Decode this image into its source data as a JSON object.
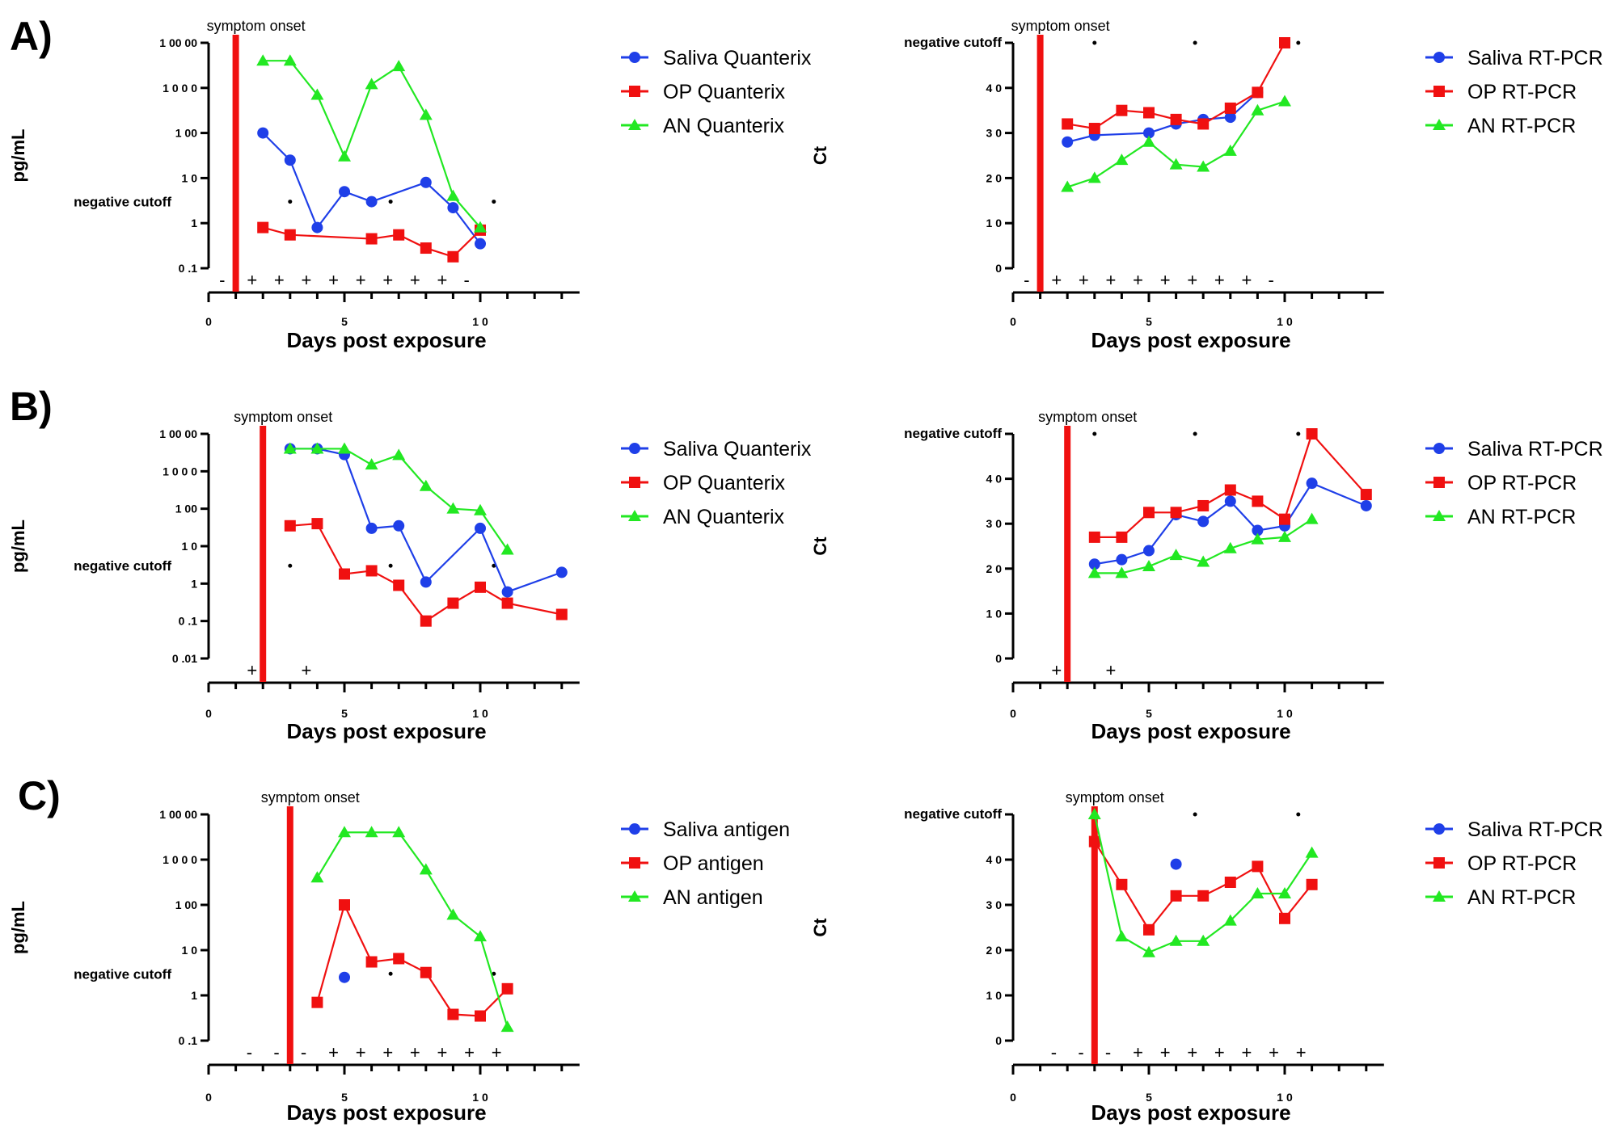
{
  "figure": {
    "xlabel": "Days post exposure",
    "symptom_label": "symptom onset",
    "cutoff_label": "negative cutoff",
    "xtick_labels": [
      "0",
      "5",
      "1 0"
    ],
    "colors": {
      "saliva": "#1f3fe8",
      "op": "#f01010",
      "an": "#22e822",
      "onset": "#f01010"
    }
  },
  "chart_data": [
    {
      "panel": "A)",
      "type": "line",
      "scale": "log",
      "ylabel": "pg/mL",
      "xlim": [
        0,
        13
      ],
      "ylim": [
        0.1,
        10000
      ],
      "yticks": [
        0.1,
        1,
        10,
        100,
        1000,
        10000
      ],
      "ytick_labels": [
        "0 .1",
        "1",
        "1 0",
        "1 00",
        "1 0 0 0",
        "1 00 00"
      ],
      "onset": 1,
      "cutoff_value": 3,
      "cutoff_dots": [
        3,
        6.7,
        10.5
      ],
      "signs": [
        {
          "x": 0.5,
          "s": "-"
        },
        {
          "x": 1.6,
          "s": "+"
        },
        {
          "x": 2.6,
          "s": "+"
        },
        {
          "x": 3.6,
          "s": "+"
        },
        {
          "x": 4.6,
          "s": "+"
        },
        {
          "x": 5.6,
          "s": "+"
        },
        {
          "x": 6.6,
          "s": "+"
        },
        {
          "x": 7.6,
          "s": "+"
        },
        {
          "x": 8.6,
          "s": "+"
        },
        {
          "x": 9.5,
          "s": "-"
        }
      ],
      "series": [
        {
          "name": "Saliva Quanterix",
          "marker": "circle",
          "key": "saliva",
          "x": [
            2,
            3,
            4,
            5,
            6,
            8,
            9,
            10
          ],
          "y": [
            100,
            25,
            0.8,
            5,
            3,
            8,
            2.2,
            0.35
          ]
        },
        {
          "name": "OP Quanterix",
          "marker": "square",
          "key": "op",
          "x": [
            2,
            3,
            6,
            7,
            8,
            9,
            10
          ],
          "y": [
            0.8,
            0.55,
            0.45,
            0.55,
            0.28,
            0.18,
            0.7
          ]
        },
        {
          "name": "AN Quanterix",
          "marker": "triangle",
          "key": "an",
          "x": [
            2,
            3,
            4,
            5,
            6,
            7,
            8,
            9,
            10
          ],
          "y": [
            4000,
            4000,
            700,
            30,
            1200,
            3000,
            250,
            4,
            0.8
          ]
        }
      ]
    },
    {
      "panel": "",
      "type": "line",
      "scale": "linear",
      "ylabel": "Ct",
      "xlim": [
        0,
        13
      ],
      "ylim": [
        0,
        50
      ],
      "yticks": [
        0,
        10,
        20,
        30,
        40,
        50
      ],
      "ytick_labels": [
        "0",
        "1 0",
        "2 0",
        "3 0",
        "4 0",
        "negative cutoff"
      ],
      "onset": 1,
      "cutoff_value": 50,
      "cutoff_dots": [
        3,
        6.7,
        10.5
      ],
      "signs": [
        {
          "x": 0.5,
          "s": "-"
        },
        {
          "x": 1.6,
          "s": "+"
        },
        {
          "x": 2.6,
          "s": "+"
        },
        {
          "x": 3.6,
          "s": "+"
        },
        {
          "x": 4.6,
          "s": "+"
        },
        {
          "x": 5.6,
          "s": "+"
        },
        {
          "x": 6.6,
          "s": "+"
        },
        {
          "x": 7.6,
          "s": "+"
        },
        {
          "x": 8.6,
          "s": "+"
        },
        {
          "x": 9.5,
          "s": "-"
        }
      ],
      "series": [
        {
          "name": "Saliva RT-PCR",
          "marker": "circle",
          "key": "saliva",
          "x": [
            2,
            3,
            5,
            6,
            7,
            8,
            9
          ],
          "y": [
            28,
            29.5,
            30,
            32,
            33,
            33.5,
            39
          ]
        },
        {
          "name": "OP RT-PCR",
          "marker": "square",
          "key": "op",
          "x": [
            2,
            3,
            4,
            5,
            6,
            7,
            8,
            9,
            10
          ],
          "y": [
            32,
            31,
            35,
            34.5,
            33,
            32,
            35.5,
            39,
            50
          ]
        },
        {
          "name": "AN RT-PCR",
          "marker": "triangle",
          "key": "an",
          "x": [
            2,
            3,
            4,
            5,
            6,
            7,
            8,
            9,
            10
          ],
          "y": [
            18,
            20,
            24,
            28,
            23,
            22.5,
            26,
            35,
            37
          ]
        }
      ]
    },
    {
      "panel": "B)",
      "type": "line",
      "scale": "log",
      "ylabel": "pg/mL",
      "xlim": [
        0,
        13
      ],
      "ylim": [
        0.01,
        10000
      ],
      "yticks": [
        0.01,
        0.1,
        1,
        10,
        100,
        1000,
        10000
      ],
      "ytick_labels": [
        "0 .01",
        "0 .1",
        "1",
        "1 0",
        "1 00",
        "1 0 0 0",
        "1 00 00"
      ],
      "onset": 2,
      "cutoff_value": 3,
      "cutoff_dots": [
        3,
        6.7,
        10.5
      ],
      "signs": [
        {
          "x": 1.6,
          "s": "+"
        },
        {
          "x": 3.6,
          "s": "+"
        }
      ],
      "series": [
        {
          "name": "Saliva Quanterix",
          "marker": "circle",
          "key": "saliva",
          "x": [
            3,
            4,
            5,
            6,
            7,
            8,
            10,
            11,
            13
          ],
          "y": [
            4000,
            4000,
            2800,
            30,
            35,
            1.1,
            30,
            0.6,
            2
          ]
        },
        {
          "name": "OP Quanterix",
          "marker": "square",
          "key": "op",
          "x": [
            3,
            4,
            5,
            6,
            7,
            8,
            9,
            10,
            11,
            13
          ],
          "y": [
            35,
            40,
            1.8,
            2.2,
            0.9,
            0.1,
            0.3,
            0.8,
            0.3,
            0.15
          ]
        },
        {
          "name": "AN Quanterix",
          "marker": "triangle",
          "key": "an",
          "x": [
            3,
            4,
            5,
            6,
            7,
            8,
            9,
            10,
            11
          ],
          "y": [
            4000,
            4000,
            4000,
            1500,
            2700,
            400,
            100,
            90,
            8
          ]
        }
      ]
    },
    {
      "panel": "",
      "type": "line",
      "scale": "linear",
      "ylabel": "Ct",
      "xlim": [
        0,
        13
      ],
      "ylim": [
        0,
        50
      ],
      "yticks": [
        0,
        10,
        20,
        30,
        40,
        50
      ],
      "ytick_labels": [
        "0",
        "1 0",
        "2 0",
        "3 0",
        "4 0",
        "negative cutoff"
      ],
      "onset": 2,
      "cutoff_value": 50,
      "cutoff_dots": [
        3,
        6.7,
        10.5
      ],
      "signs": [
        {
          "x": 1.6,
          "s": "+"
        },
        {
          "x": 3.6,
          "s": "+"
        }
      ],
      "series": [
        {
          "name": "Saliva RT-PCR",
          "marker": "circle",
          "key": "saliva",
          "x": [
            3,
            4,
            5,
            6,
            7,
            8,
            9,
            10,
            11,
            13
          ],
          "y": [
            21,
            22,
            24,
            32,
            30.5,
            35,
            28.5,
            29.5,
            39,
            34
          ]
        },
        {
          "name": "OP RT-PCR",
          "marker": "square",
          "key": "op",
          "x": [
            3,
            4,
            5,
            6,
            7,
            8,
            9,
            10,
            11,
            13
          ],
          "y": [
            27,
            27,
            32.5,
            32.5,
            34,
            37.5,
            35,
            31,
            50,
            36.5
          ]
        },
        {
          "name": "AN RT-PCR",
          "marker": "triangle",
          "key": "an",
          "x": [
            3,
            4,
            5,
            6,
            7,
            8,
            9,
            10,
            11
          ],
          "y": [
            19,
            19,
            20.5,
            23,
            21.5,
            24.5,
            26.5,
            27,
            31
          ]
        }
      ]
    },
    {
      "panel": "C)",
      "type": "line",
      "scale": "log",
      "ylabel": "pg/mL",
      "xlim": [
        0,
        13
      ],
      "ylim": [
        0.1,
        10000
      ],
      "yticks": [
        0.1,
        1,
        10,
        100,
        1000,
        10000
      ],
      "ytick_labels": [
        "0 .1",
        "1",
        "1 0",
        "1 00",
        "1 0 0 0",
        "1 00 00"
      ],
      "onset": 3,
      "cutoff_value": 3,
      "cutoff_dots": [
        3,
        6.7,
        10.5
      ],
      "signs": [
        {
          "x": 1.5,
          "s": "-"
        },
        {
          "x": 2.5,
          "s": "-"
        },
        {
          "x": 3.5,
          "s": "-"
        },
        {
          "x": 4.6,
          "s": "+"
        },
        {
          "x": 5.6,
          "s": "+"
        },
        {
          "x": 6.6,
          "s": "+"
        },
        {
          "x": 7.6,
          "s": "+"
        },
        {
          "x": 8.6,
          "s": "+"
        },
        {
          "x": 9.6,
          "s": "+"
        },
        {
          "x": 10.6,
          "s": "+"
        }
      ],
      "series": [
        {
          "name": "Saliva antigen",
          "marker": "circle",
          "key": "saliva",
          "x": [
            5
          ],
          "y": [
            2.5
          ]
        },
        {
          "name": "OP antigen",
          "marker": "square",
          "key": "op",
          "x": [
            4,
            5,
            6,
            7,
            8,
            9,
            10,
            11
          ],
          "y": [
            0.7,
            100,
            5.5,
            6.5,
            3.2,
            0.38,
            0.35,
            1.4
          ]
        },
        {
          "name": "AN antigen",
          "marker": "triangle",
          "key": "an",
          "x": [
            4,
            5,
            6,
            7,
            8,
            9,
            10,
            11
          ],
          "y": [
            400,
            4000,
            4000,
            4000,
            600,
            60,
            20,
            0.2
          ]
        }
      ]
    },
    {
      "panel": "",
      "type": "line",
      "scale": "linear",
      "ylabel": "Ct",
      "xlim": [
        0,
        13
      ],
      "ylim": [
        0,
        50
      ],
      "yticks": [
        0,
        10,
        20,
        30,
        40,
        50
      ],
      "ytick_labels": [
        "0",
        "1 0",
        "2 0",
        "3 0",
        "4 0",
        "negative cutoff"
      ],
      "onset": 3,
      "cutoff_value": 50,
      "cutoff_dots": [
        3,
        6.7,
        10.5
      ],
      "signs": [
        {
          "x": 1.5,
          "s": "-"
        },
        {
          "x": 2.5,
          "s": "-"
        },
        {
          "x": 3.5,
          "s": "-"
        },
        {
          "x": 4.6,
          "s": "+"
        },
        {
          "x": 5.6,
          "s": "+"
        },
        {
          "x": 6.6,
          "s": "+"
        },
        {
          "x": 7.6,
          "s": "+"
        },
        {
          "x": 8.6,
          "s": "+"
        },
        {
          "x": 9.6,
          "s": "+"
        },
        {
          "x": 10.6,
          "s": "+"
        }
      ],
      "series": [
        {
          "name": "Saliva RT-PCR",
          "marker": "circle",
          "key": "saliva",
          "x": [
            6
          ],
          "y": [
            39
          ]
        },
        {
          "name": "OP RT-PCR",
          "marker": "square",
          "key": "op",
          "x": [
            3,
            4,
            5,
            6,
            7,
            8,
            9,
            10,
            11
          ],
          "y": [
            44,
            34.5,
            24.5,
            32,
            32,
            35,
            38.5,
            27,
            34.5
          ]
        },
        {
          "name": "AN RT-PCR",
          "marker": "triangle",
          "key": "an",
          "x": [
            3,
            4,
            5,
            6,
            7,
            8,
            9,
            10,
            11
          ],
          "y": [
            50,
            23,
            19.5,
            22,
            22,
            26.5,
            32.5,
            32.5,
            41.5
          ]
        }
      ]
    }
  ]
}
